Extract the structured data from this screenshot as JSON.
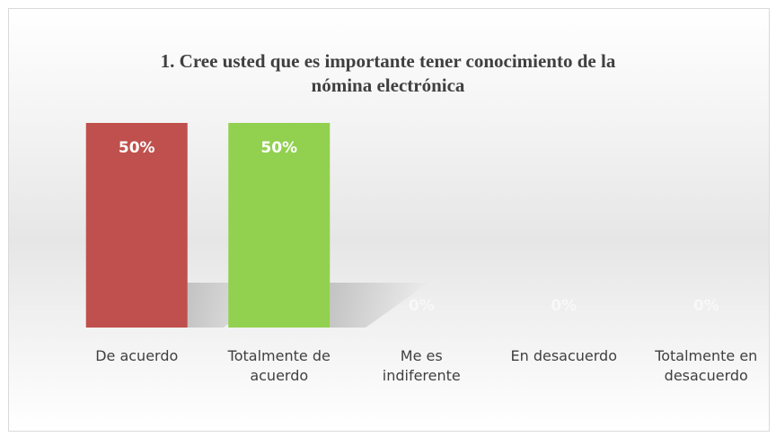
{
  "chart_data": {
    "type": "bar",
    "title": "1. Cree usted que es importante tener  conocimiento de la\nnómina electrónica",
    "categories": [
      "De acuerdo",
      "Totalmente de\nacuerdo",
      "Me es\nindiferente",
      "En desacuerdo",
      "Totalmente en\ndesacuerdo"
    ],
    "values": [
      50,
      50,
      0,
      0,
      0
    ],
    "value_labels": [
      "50%",
      "50%",
      "0%",
      "0%",
      "0%"
    ],
    "colors": [
      "#c0504d",
      "#92d050",
      "#ffffff",
      "#ffffff",
      "#ffffff"
    ],
    "ylim": [
      0,
      50
    ]
  }
}
